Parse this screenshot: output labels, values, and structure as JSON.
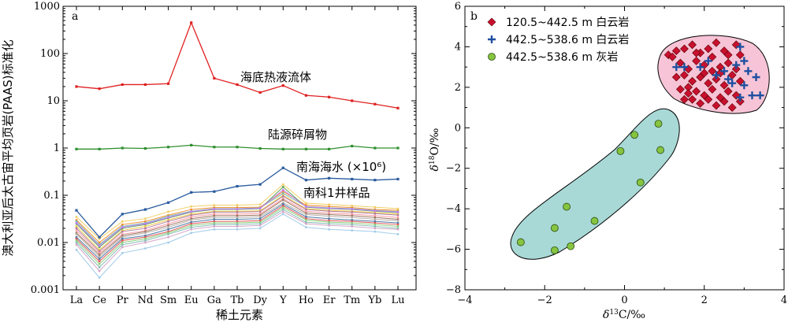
{
  "colors": {
    "seawater_hole": "#2a5a9e",
    "terrigenous": "#2f8f2f",
    "hydrothermal": "#e02020",
    "samples": [
      "#f28e2b",
      "#76b7b2",
      "#59a14f",
      "#edc948",
      "#b07aa1",
      "#ff9da7",
      "#9c755f",
      "#bab0ac",
      "#4e79a7",
      "#e15759",
      "#8cd17d",
      "#86bcb6",
      "#d4a6c8",
      "#a0cbe8",
      "#f1ce63",
      "#c77cff"
    ],
    "dolomite_1_marker": "#c8102e",
    "dolomite_2_marker": "#1f4fa0",
    "limestone_marker": "#86c540",
    "field_pink": "#f6c4d6",
    "field_teal": "#a8d9d6"
  },
  "chart_data": [
    {
      "panel": "a",
      "type": "line",
      "ylabel": "澳大利亚后太古宙平均页岩(PAAS)标准化",
      "xlabel": "稀土元素",
      "y_scale": "log",
      "ylim": [
        0.001,
        1000
      ],
      "yticks": [
        "0.001",
        "0.01",
        "0.1",
        "1",
        "10",
        "100",
        "1000"
      ],
      "categories": [
        "La",
        "Ce",
        "Pr",
        "Nd",
        "Sm",
        "Eu",
        "Ga",
        "Tb",
        "Dy",
        "Y",
        "Ho",
        "Er",
        "Tm",
        "Yb",
        "Lu"
      ],
      "series": [
        {
          "name": "海底热液流体",
          "color_key": "hydrothermal",
          "values": [
            20,
            18,
            22,
            22,
            23,
            450,
            30,
            22,
            15,
            21,
            13,
            12,
            10,
            8.5,
            7
          ]
        },
        {
          "name": "陆源碎屑物",
          "color_key": "terrigenous",
          "values": [
            0.95,
            0.95,
            1.0,
            0.98,
            1.05,
            1.15,
            1.05,
            1.05,
            0.98,
            0.95,
            0.95,
            0.95,
            1.1,
            1.0,
            1.0
          ]
        },
        {
          "name": "南海海水 (×10⁶)",
          "color_key": "seawater_hole",
          "values": [
            0.048,
            0.013,
            0.04,
            0.05,
            0.07,
            0.115,
            0.12,
            0.155,
            0.17,
            0.38,
            0.21,
            0.23,
            0.22,
            0.21,
            0.22
          ]
        }
      ],
      "sample_group_label": "南科1井样品",
      "samples": [
        [
          0.03,
          0.01,
          0.024,
          0.028,
          0.038,
          0.05,
          0.055,
          0.055,
          0.056,
          0.12,
          0.062,
          0.058,
          0.055,
          0.05,
          0.048
        ],
        [
          0.028,
          0.009,
          0.022,
          0.026,
          0.036,
          0.046,
          0.052,
          0.052,
          0.054,
          0.11,
          0.058,
          0.054,
          0.052,
          0.048,
          0.045
        ],
        [
          0.025,
          0.008,
          0.02,
          0.024,
          0.033,
          0.044,
          0.05,
          0.05,
          0.052,
          0.15,
          0.056,
          0.052,
          0.05,
          0.046,
          0.043
        ],
        [
          0.022,
          0.007,
          0.018,
          0.022,
          0.03,
          0.04,
          0.046,
          0.046,
          0.047,
          0.1,
          0.052,
          0.048,
          0.046,
          0.043,
          0.04
        ],
        [
          0.02,
          0.0065,
          0.017,
          0.02,
          0.028,
          0.038,
          0.044,
          0.044,
          0.045,
          0.095,
          0.05,
          0.046,
          0.044,
          0.041,
          0.038
        ],
        [
          0.018,
          0.006,
          0.015,
          0.018,
          0.025,
          0.035,
          0.04,
          0.04,
          0.041,
          0.085,
          0.046,
          0.042,
          0.04,
          0.037,
          0.034
        ],
        [
          0.016,
          0.0055,
          0.014,
          0.017,
          0.023,
          0.032,
          0.037,
          0.037,
          0.038,
          0.08,
          0.042,
          0.039,
          0.037,
          0.034,
          0.031
        ],
        [
          0.015,
          0.005,
          0.013,
          0.016,
          0.021,
          0.03,
          0.034,
          0.034,
          0.035,
          0.07,
          0.039,
          0.036,
          0.034,
          0.031,
          0.029
        ],
        [
          0.013,
          0.0045,
          0.012,
          0.014,
          0.019,
          0.027,
          0.031,
          0.031,
          0.032,
          0.065,
          0.035,
          0.032,
          0.03,
          0.028,
          0.026
        ],
        [
          0.012,
          0.004,
          0.011,
          0.013,
          0.017,
          0.025,
          0.028,
          0.028,
          0.029,
          0.06,
          0.032,
          0.029,
          0.028,
          0.026,
          0.024
        ],
        [
          0.011,
          0.0035,
          0.01,
          0.012,
          0.016,
          0.023,
          0.026,
          0.026,
          0.027,
          0.055,
          0.03,
          0.027,
          0.026,
          0.024,
          0.022
        ],
        [
          0.01,
          0.003,
          0.009,
          0.011,
          0.015,
          0.021,
          0.024,
          0.024,
          0.025,
          0.05,
          0.027,
          0.025,
          0.024,
          0.022,
          0.02
        ],
        [
          0.009,
          0.0025,
          0.008,
          0.01,
          0.013,
          0.019,
          0.022,
          0.022,
          0.023,
          0.045,
          0.025,
          0.023,
          0.022,
          0.02,
          0.019
        ],
        [
          0.007,
          0.0018,
          0.006,
          0.0075,
          0.01,
          0.016,
          0.019,
          0.019,
          0.02,
          0.04,
          0.021,
          0.019,
          0.018,
          0.017,
          0.015
        ],
        [
          0.035,
          0.012,
          0.028,
          0.032,
          0.045,
          0.058,
          0.062,
          0.062,
          0.064,
          0.17,
          0.068,
          0.064,
          0.06,
          0.056,
          0.052
        ],
        [
          0.026,
          0.0085,
          0.021,
          0.025,
          0.034,
          0.045,
          0.051,
          0.051,
          0.053,
          0.13,
          0.057,
          0.053,
          0.051,
          0.047,
          0.044
        ]
      ]
    },
    {
      "panel": "b",
      "type": "scatter",
      "xlabel": "δ13C/‰",
      "ylabel": "δ18O/‰",
      "xlim": [
        -4,
        4
      ],
      "ylim": [
        -8,
        6
      ],
      "xticks": [
        "−4",
        "−2",
        "0",
        "2",
        "4"
      ],
      "yticks": [
        "−8",
        "−6",
        "−4",
        "−2",
        "0",
        "2",
        "4",
        "6"
      ],
      "legend_position": "top-left",
      "series": [
        {
          "name": "120.5~442.5 m 白云岩",
          "marker": "diamond",
          "color_key": "dolomite_1_marker",
          "points": [
            [
              1.1,
              3.6
            ],
            [
              1.3,
              3.8
            ],
            [
              1.2,
              3.5
            ],
            [
              1.5,
              3.9
            ],
            [
              1.7,
              4.1
            ],
            [
              1.9,
              3.7
            ],
            [
              2.1,
              3.9
            ],
            [
              2.3,
              4.2
            ],
            [
              2.5,
              3.8
            ],
            [
              2.8,
              4.1
            ],
            [
              2.9,
              3.6
            ],
            [
              1.4,
              3.2
            ],
            [
              1.6,
              2.9
            ],
            [
              1.8,
              3.3
            ],
            [
              2.0,
              3.1
            ],
            [
              2.2,
              2.8
            ],
            [
              2.4,
              3.0
            ],
            [
              2.6,
              3.2
            ],
            [
              2.8,
              2.9
            ],
            [
              1.5,
              2.6
            ],
            [
              1.7,
              2.3
            ],
            [
              1.9,
              2.5
            ],
            [
              2.1,
              2.2
            ],
            [
              2.3,
              2.4
            ],
            [
              2.5,
              2.1
            ],
            [
              2.7,
              2.6
            ],
            [
              2.9,
              2.3
            ],
            [
              1.6,
              2.0
            ],
            [
              1.8,
              1.8
            ],
            [
              2.0,
              1.6
            ],
            [
              2.2,
              1.9
            ],
            [
              2.4,
              1.5
            ],
            [
              2.6,
              1.8
            ],
            [
              2.8,
              1.6
            ],
            [
              1.7,
              1.4
            ],
            [
              1.9,
              1.2
            ],
            [
              2.1,
              1.4
            ],
            [
              2.3,
              1.1
            ],
            [
              2.5,
              1.3
            ],
            [
              2.7,
              1.0
            ],
            [
              1.6,
              1.7
            ],
            [
              2.0,
              2.7
            ],
            [
              2.4,
              2.7
            ],
            [
              1.3,
              2.5
            ],
            [
              1.4,
              1.9
            ],
            [
              2.2,
              3.5
            ],
            [
              2.6,
              3.6
            ],
            [
              1.8,
              3.7
            ],
            [
              2.9,
              1.3
            ],
            [
              1.5,
              1.4
            ]
          ]
        },
        {
          "name": "442.5~538.6 m 白云岩",
          "marker": "plus",
          "color_key": "dolomite_2_marker",
          "points": [
            [
              2.9,
              4.0
            ],
            [
              3.0,
              3.3
            ],
            [
              2.8,
              3.1
            ],
            [
              3.1,
              2.8
            ],
            [
              3.3,
              2.5
            ],
            [
              3.0,
              2.1
            ],
            [
              2.7,
              2.2
            ],
            [
              3.2,
              1.6
            ],
            [
              3.4,
              1.6
            ],
            [
              2.9,
              1.5
            ],
            [
              2.5,
              2.8
            ],
            [
              2.3,
              2.6
            ],
            [
              1.5,
              3.0
            ],
            [
              1.9,
              3.0
            ],
            [
              2.6,
              2.4
            ],
            [
              1.3,
              3.0
            ],
            [
              2.1,
              3.3
            ]
          ]
        },
        {
          "name": "442.5~538.6 m 灰岩",
          "marker": "circle",
          "color_key": "limestone_marker",
          "points": [
            [
              0.85,
              0.2
            ],
            [
              0.25,
              -0.35
            ],
            [
              -0.1,
              -1.15
            ],
            [
              0.9,
              -1.1
            ],
            [
              0.4,
              -2.7
            ],
            [
              -1.45,
              -3.9
            ],
            [
              -0.75,
              -4.6
            ],
            [
              -1.75,
              -4.95
            ],
            [
              -2.6,
              -5.65
            ],
            [
              -1.35,
              -5.85
            ],
            [
              -1.75,
              -6.05
            ]
          ]
        }
      ]
    }
  ],
  "panel_a": {
    "label": "a"
  },
  "panel_b": {
    "label": "b"
  }
}
